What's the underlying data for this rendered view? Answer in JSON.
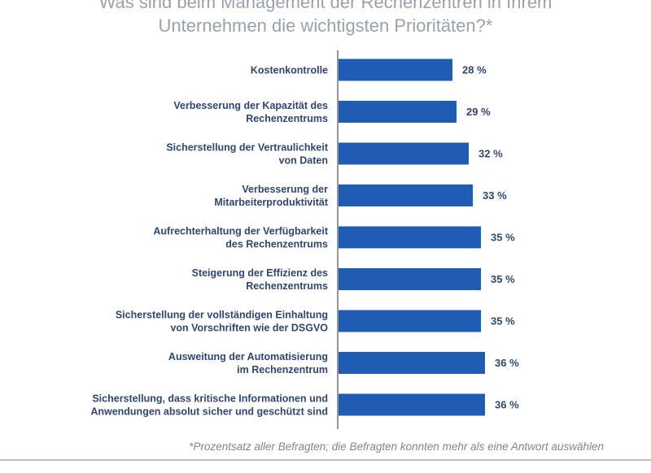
{
  "chart_data": {
    "type": "bar",
    "orientation": "horizontal",
    "title": "Was sind beim Management der Rechenzentren in Ihrem Unternehmen die wichtigsten Prioritäten?*",
    "title_lines": [
      "Was sind beim Management der Rechenzentren in Ihrem",
      "Unternehmen die wichtigsten Prioritäten?*"
    ],
    "categories": [
      [
        "Kostenkontrolle"
      ],
      [
        "Verbesserung der Kapazität des",
        "Rechenzentrums"
      ],
      [
        "Sicherstellung der Vertraulichkeit",
        "von Daten"
      ],
      [
        "Verbesserung der",
        "Mitarbeiterproduktivität"
      ],
      [
        "Aufrechterhaltung der Verfügbarkeit",
        "des Rechenzentrums"
      ],
      [
        "Steigerung der Effizienz des",
        "Rechenzentrums"
      ],
      [
        "Sicherstellung der vollständigen Einhaltung",
        "von Vorschriften wie der DSGVO"
      ],
      [
        "Ausweitung der Automatisierung",
        "im Rechenzentrum"
      ],
      [
        "Sicherstellung, dass kritische Informationen und",
        "Anwendungen absolut sicher und geschützt sind"
      ]
    ],
    "values": [
      28,
      29,
      32,
      33,
      35,
      35,
      35,
      36,
      36
    ],
    "value_labels": [
      "28 %",
      "29 %",
      "32 %",
      "33 %",
      "35 %",
      "35 %",
      "35 %",
      "36 %",
      "36 %"
    ],
    "unit": "%",
    "xlim": [
      0,
      40
    ],
    "bar_color": "#1f5db4",
    "grid": false,
    "footnote": "*Prozentsatz aller Befragten; die Befragten konnten mehr als eine Antwort auswählen"
  }
}
